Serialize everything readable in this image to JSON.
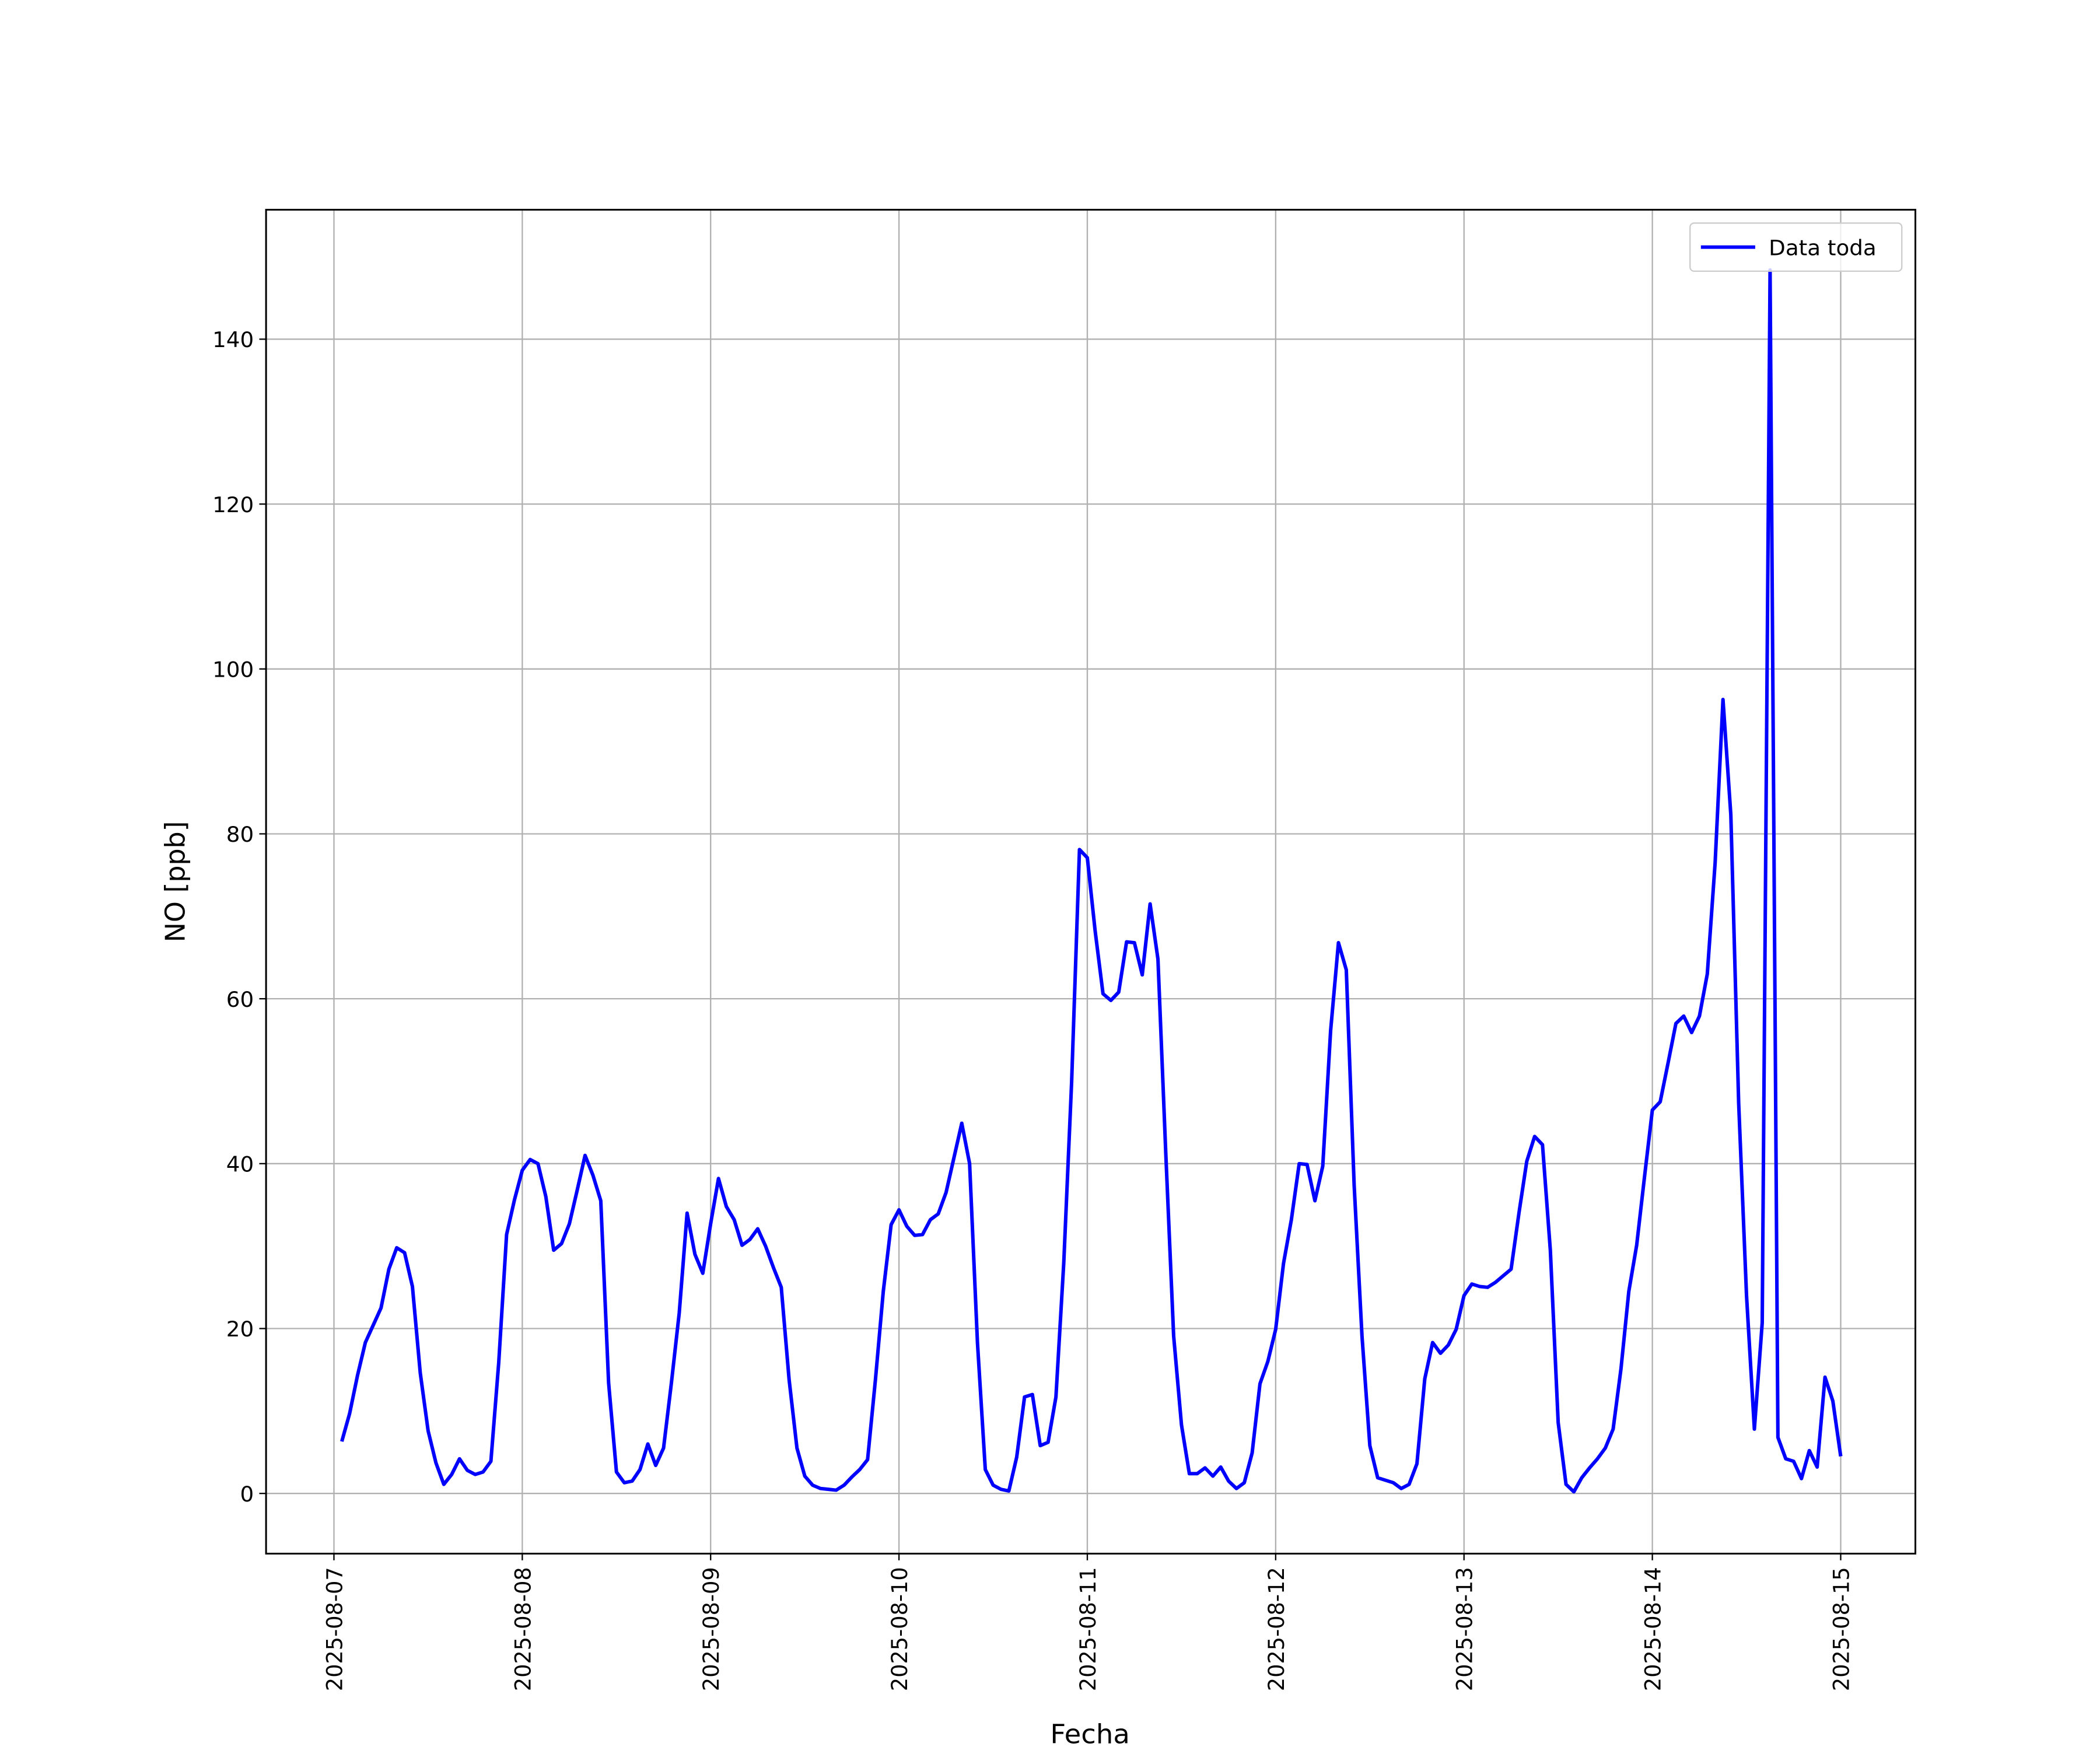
{
  "chart_data": {
    "type": "line",
    "x_label": "Fecha",
    "y_label": "NO [ppb]",
    "x": [
      "2025-08-07 01:00",
      "2025-08-07 02:00",
      "2025-08-07 03:00",
      "2025-08-07 04:00",
      "2025-08-07 05:00",
      "2025-08-07 06:00",
      "2025-08-07 07:00",
      "2025-08-07 08:00",
      "2025-08-07 09:00",
      "2025-08-07 10:00",
      "2025-08-07 11:00",
      "2025-08-07 12:00",
      "2025-08-07 13:00",
      "2025-08-07 14:00",
      "2025-08-07 15:00",
      "2025-08-07 16:00",
      "2025-08-07 17:00",
      "2025-08-07 18:00",
      "2025-08-07 19:00",
      "2025-08-07 20:00",
      "2025-08-07 21:00",
      "2025-08-07 22:00",
      "2025-08-07 23:00",
      "2025-08-08 00:00",
      "2025-08-08 01:00",
      "2025-08-08 02:00",
      "2025-08-08 03:00",
      "2025-08-08 04:00",
      "2025-08-08 05:00",
      "2025-08-08 06:00",
      "2025-08-08 07:00",
      "2025-08-08 08:00",
      "2025-08-08 09:00",
      "2025-08-08 10:00",
      "2025-08-08 11:00",
      "2025-08-08 12:00",
      "2025-08-08 13:00",
      "2025-08-08 14:00",
      "2025-08-08 15:00",
      "2025-08-08 16:00",
      "2025-08-08 17:00",
      "2025-08-08 18:00",
      "2025-08-08 19:00",
      "2025-08-08 20:00",
      "2025-08-08 21:00",
      "2025-08-08 22:00",
      "2025-08-08 23:00",
      "2025-08-09 00:00",
      "2025-08-09 01:00",
      "2025-08-09 02:00",
      "2025-08-09 03:00",
      "2025-08-09 04:00",
      "2025-08-09 05:00",
      "2025-08-09 06:00",
      "2025-08-09 07:00",
      "2025-08-09 08:00",
      "2025-08-09 09:00",
      "2025-08-09 10:00",
      "2025-08-09 11:00",
      "2025-08-09 12:00",
      "2025-08-09 13:00",
      "2025-08-09 14:00",
      "2025-08-09 15:00",
      "2025-08-09 16:00",
      "2025-08-09 17:00",
      "2025-08-09 18:00",
      "2025-08-09 19:00",
      "2025-08-09 20:00",
      "2025-08-09 21:00",
      "2025-08-09 22:00",
      "2025-08-09 23:00",
      "2025-08-10 00:00",
      "2025-08-10 01:00",
      "2025-08-10 02:00",
      "2025-08-10 03:00",
      "2025-08-10 04:00",
      "2025-08-10 05:00",
      "2025-08-10 06:00",
      "2025-08-10 07:00",
      "2025-08-10 08:00",
      "2025-08-10 09:00",
      "2025-08-10 10:00",
      "2025-08-10 11:00",
      "2025-08-10 12:00",
      "2025-08-10 13:00",
      "2025-08-10 14:00",
      "2025-08-10 15:00",
      "2025-08-10 16:00",
      "2025-08-10 17:00",
      "2025-08-10 18:00",
      "2025-08-10 19:00",
      "2025-08-10 20:00",
      "2025-08-10 21:00",
      "2025-08-10 22:00",
      "2025-08-10 23:00",
      "2025-08-11 00:00",
      "2025-08-11 01:00",
      "2025-08-11 02:00",
      "2025-08-11 03:00",
      "2025-08-11 04:00",
      "2025-08-11 05:00",
      "2025-08-11 06:00",
      "2025-08-11 07:00",
      "2025-08-11 08:00",
      "2025-08-11 09:00",
      "2025-08-11 10:00",
      "2025-08-11 11:00",
      "2025-08-11 12:00",
      "2025-08-11 13:00",
      "2025-08-11 14:00",
      "2025-08-11 15:00",
      "2025-08-11 16:00",
      "2025-08-11 17:00",
      "2025-08-11 18:00",
      "2025-08-11 19:00",
      "2025-08-11 20:00",
      "2025-08-11 21:00",
      "2025-08-11 22:00",
      "2025-08-11 23:00",
      "2025-08-12 00:00",
      "2025-08-12 01:00",
      "2025-08-12 02:00",
      "2025-08-12 03:00",
      "2025-08-12 04:00",
      "2025-08-12 05:00",
      "2025-08-12 06:00",
      "2025-08-12 07:00",
      "2025-08-12 08:00",
      "2025-08-12 09:00",
      "2025-08-12 10:00",
      "2025-08-12 11:00",
      "2025-08-12 12:00",
      "2025-08-12 13:00",
      "2025-08-12 14:00",
      "2025-08-12 15:00",
      "2025-08-12 16:00",
      "2025-08-12 17:00",
      "2025-08-12 18:00",
      "2025-08-12 19:00",
      "2025-08-12 20:00",
      "2025-08-12 21:00",
      "2025-08-12 22:00",
      "2025-08-12 23:00",
      "2025-08-13 00:00",
      "2025-08-13 01:00",
      "2025-08-13 02:00",
      "2025-08-13 03:00",
      "2025-08-13 04:00",
      "2025-08-13 05:00",
      "2025-08-13 06:00",
      "2025-08-13 07:00",
      "2025-08-13 08:00",
      "2025-08-13 09:00",
      "2025-08-13 10:00",
      "2025-08-13 11:00",
      "2025-08-13 12:00",
      "2025-08-13 13:00",
      "2025-08-13 14:00",
      "2025-08-13 15:00",
      "2025-08-13 16:00",
      "2025-08-13 17:00",
      "2025-08-13 18:00",
      "2025-08-13 19:00",
      "2025-08-13 20:00",
      "2025-08-13 21:00",
      "2025-08-13 22:00",
      "2025-08-13 23:00",
      "2025-08-14 00:00",
      "2025-08-14 01:00",
      "2025-08-14 02:00",
      "2025-08-14 03:00",
      "2025-08-14 04:00",
      "2025-08-14 05:00",
      "2025-08-14 06:00",
      "2025-08-14 07:00",
      "2025-08-14 08:00",
      "2025-08-14 09:00",
      "2025-08-14 10:00",
      "2025-08-14 11:00",
      "2025-08-14 12:00",
      "2025-08-14 13:00",
      "2025-08-14 14:00",
      "2025-08-14 15:00",
      "2025-08-14 16:00",
      "2025-08-14 17:00",
      "2025-08-14 18:00",
      "2025-08-14 19:00",
      "2025-08-14 20:00",
      "2025-08-14 21:00",
      "2025-08-14 22:00",
      "2025-08-14 23:00",
      "2025-08-15 00:00"
    ],
    "series": [
      {
        "name": "Data toda",
        "color": "#0000ff",
        "values": [
          6.3,
          9.7,
          14.3,
          18.3,
          20.4,
          22.5,
          27.2,
          29.8,
          29.2,
          25.1,
          14.6,
          7.6,
          3.7,
          1.1,
          2.3,
          4.2,
          2.8,
          2.3,
          2.6,
          3.9,
          15.9,
          31.4,
          35.6,
          39.2,
          40.5,
          40.0,
          36.0,
          29.5,
          30.3,
          32.7,
          36.8,
          41.0,
          38.6,
          35.5,
          13.4,
          2.6,
          1.3,
          1.5,
          2.9,
          6.0,
          3.4,
          5.5,
          13.4,
          21.9,
          34.0,
          29.0,
          26.7,
          32.7,
          38.2,
          34.8,
          33.2,
          30.1,
          30.8,
          32.1,
          30.0,
          27.4,
          25.0,
          13.8,
          5.5,
          2.1,
          1.0,
          0.6,
          0.5,
          0.4,
          1.0,
          2.0,
          2.9,
          4.1,
          13.8,
          24.5,
          32.6,
          34.4,
          32.4,
          31.3,
          31.4,
          33.2,
          33.9,
          36.5,
          40.7,
          44.9,
          40.0,
          18.3,
          2.9,
          1.0,
          0.5,
          0.3,
          4.4,
          11.7,
          12.0,
          5.8,
          6.2,
          11.7,
          28.0,
          49.9,
          78.1,
          77.1,
          68.2,
          60.6,
          59.8,
          60.8,
          66.9,
          66.8,
          62.9,
          71.5,
          64.8,
          41.2,
          19.1,
          8.3,
          2.4,
          2.4,
          3.1,
          2.1,
          3.2,
          1.5,
          0.6,
          1.3,
          4.9,
          13.3,
          16.0,
          19.9,
          27.9,
          33.2,
          40.0,
          39.9,
          35.5,
          39.7,
          56.1,
          66.8,
          63.5,
          37.4,
          19.1,
          5.8,
          1.9,
          1.6,
          1.3,
          0.6,
          1.1,
          3.6,
          13.9,
          18.3,
          17.0,
          18.0,
          19.9,
          24.0,
          25.4,
          25.1,
          25.0,
          25.6,
          26.4,
          27.2,
          34.0,
          40.3,
          43.3,
          42.3,
          29.5,
          8.6,
          1.1,
          0.2,
          1.9,
          3.1,
          4.2,
          5.5,
          7.8,
          15.1,
          24.5,
          30.1,
          38.4,
          46.5,
          47.5,
          52.2,
          57.0,
          57.9,
          55.9,
          57.9,
          63.0,
          76.5,
          96.3,
          82.3,
          47.3,
          24.0,
          7.8,
          20.7,
          148.4,
          6.8,
          4.2,
          3.9,
          1.8,
          5.2,
          3.2,
          14.1,
          11.2,
          4.5
        ]
      }
    ],
    "xlim": [
      "2025-08-06 15:21",
      "2025-08-15 09:31"
    ],
    "xticks": [
      "2025-08-07",
      "2025-08-08",
      "2025-08-09",
      "2025-08-10",
      "2025-08-11",
      "2025-08-12",
      "2025-08-13",
      "2025-08-14",
      "2025-08-15"
    ],
    "ylim": [
      -7.3,
      155.7
    ],
    "yticks": [
      0,
      20,
      40,
      60,
      80,
      100,
      120,
      140
    ],
    "grid": true,
    "legend": "upper right"
  }
}
